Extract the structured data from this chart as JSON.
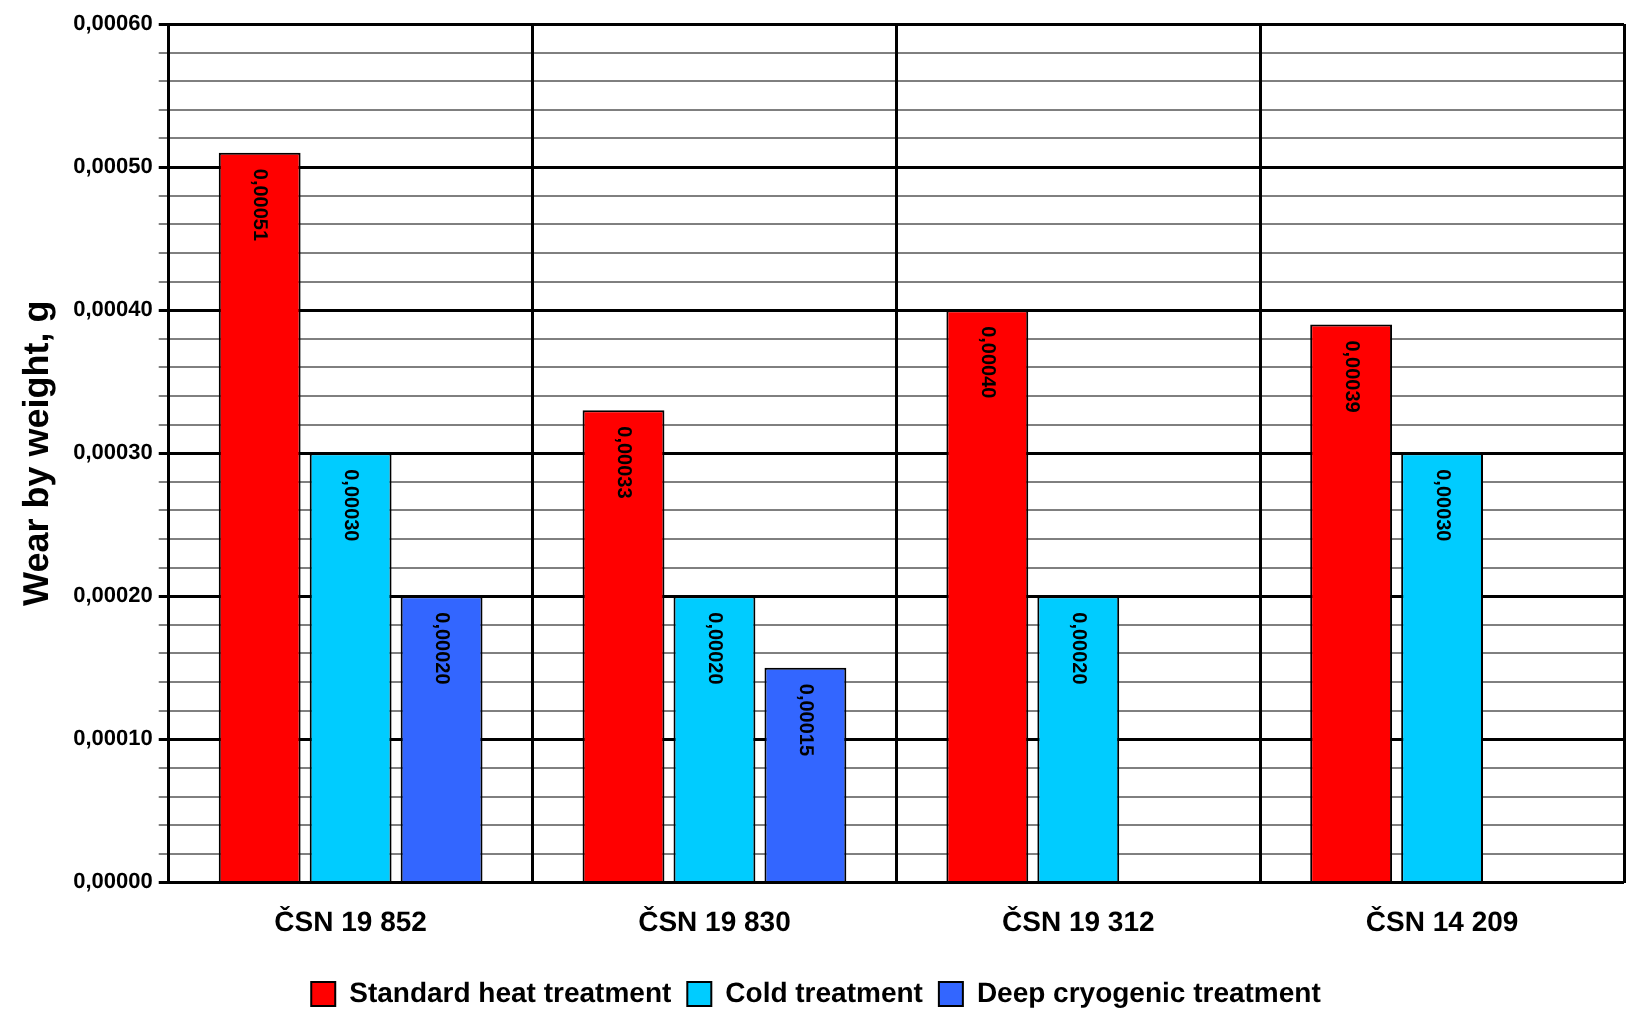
{
  "chart_data": {
    "type": "bar",
    "ylabel": "Wear by weight, g",
    "categories": [
      "ČSN 19 852",
      "ČSN 19 830",
      "ČSN 19 312",
      "ČSN 14 209"
    ],
    "series": [
      {
        "name": "Standard heat treatment",
        "color": "#ff0000",
        "values": [
          0.00051,
          0.00033,
          0.0004,
          0.00039
        ],
        "value_labels": [
          "0,00051",
          "0,00033",
          "0,00040",
          "0,00039"
        ]
      },
      {
        "name": "Cold treatment",
        "color": "#00ccff",
        "values": [
          0.0003,
          0.0002,
          0.0002,
          0.0003
        ],
        "value_labels": [
          "0,00030",
          "0,00020",
          "0,00020",
          "0,00030"
        ]
      },
      {
        "name": "Deep cryogenic treatment",
        "color": "#3366ff",
        "values": [
          0.0002,
          0.00015,
          null,
          null
        ],
        "value_labels": [
          "0,00020",
          "0,00015",
          null,
          null
        ]
      }
    ],
    "ylim": [
      0,
      0.0006
    ],
    "yticks": [
      {
        "value": 0,
        "label": "0,00000"
      },
      {
        "value": 2e-05,
        "label": null
      },
      {
        "value": 4e-05,
        "label": null
      },
      {
        "value": 6e-05,
        "label": null
      },
      {
        "value": 8e-05,
        "label": null
      },
      {
        "value": 0.0001,
        "label": "0,00010"
      },
      {
        "value": 0.00012,
        "label": null
      },
      {
        "value": 0.00014,
        "label": null
      },
      {
        "value": 0.00016,
        "label": null
      },
      {
        "value": 0.00018,
        "label": null
      },
      {
        "value": 0.0002,
        "label": "0,00020"
      },
      {
        "value": 0.00022,
        "label": null
      },
      {
        "value": 0.00024,
        "label": null
      },
      {
        "value": 0.00026,
        "label": null
      },
      {
        "value": 0.00028,
        "label": null
      },
      {
        "value": 0.0003,
        "label": "0,00030"
      },
      {
        "value": 0.00032,
        "label": null
      },
      {
        "value": 0.00034,
        "label": null
      },
      {
        "value": 0.00036,
        "label": null
      },
      {
        "value": 0.00038,
        "label": null
      },
      {
        "value": 0.0004,
        "label": "0,00040"
      },
      {
        "value": 0.00042,
        "label": null
      },
      {
        "value": 0.00044,
        "label": null
      },
      {
        "value": 0.00046,
        "label": null
      },
      {
        "value": 0.00048,
        "label": null
      },
      {
        "value": 0.0005,
        "label": "0,00050"
      },
      {
        "value": 0.00052,
        "label": null
      },
      {
        "value": 0.00054,
        "label": null
      },
      {
        "value": 0.00056,
        "label": null
      },
      {
        "value": 0.00058,
        "label": null
      },
      {
        "value": 0.0006,
        "label": "0,00060"
      }
    ],
    "grid": true,
    "legend": "bottom"
  }
}
